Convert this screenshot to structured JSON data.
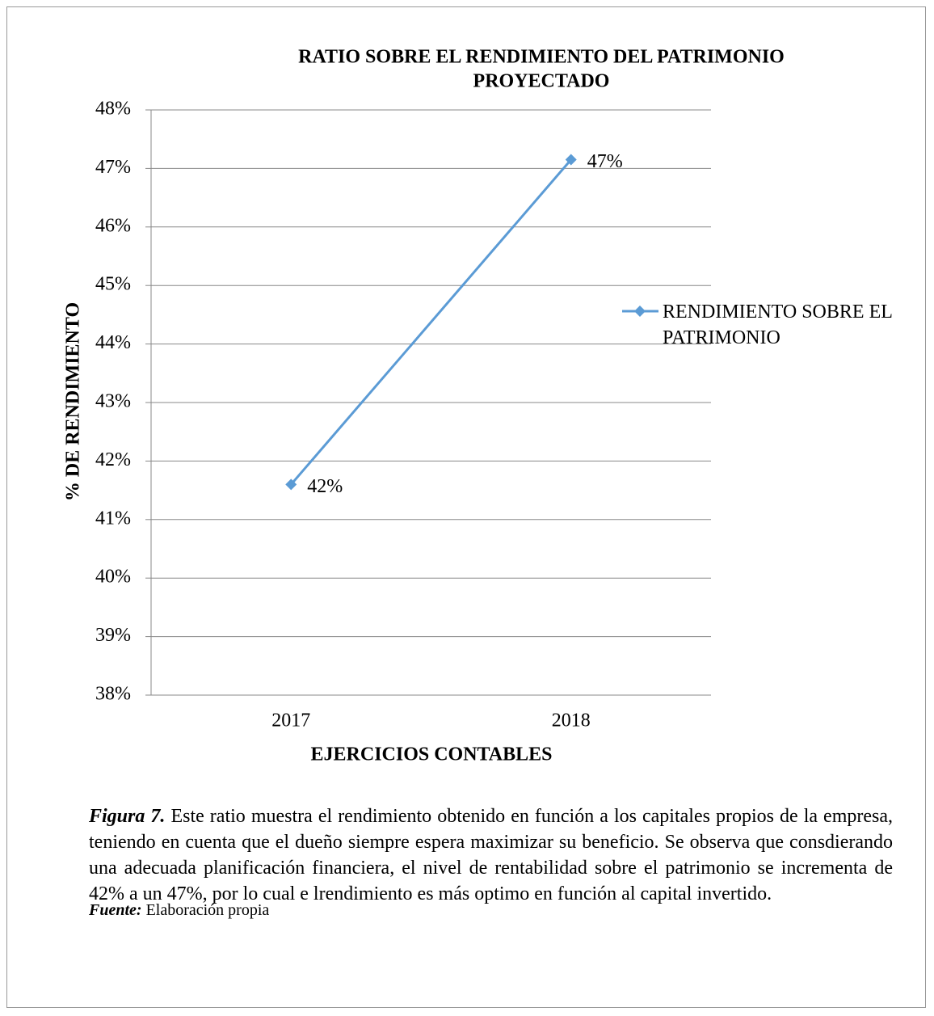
{
  "chart_data": {
    "type": "line",
    "title": [
      "RATIO SOBRE EL RENDIMIENTO DEL PATRIMONIO",
      "PROYECTADO"
    ],
    "x_label": "EJERCICIOS CONTABLES",
    "y_label": "% DE RENDIMIENTO",
    "categories": [
      "2017",
      "2018"
    ],
    "series": [
      {
        "name": "RENDIMIENTO SOBRE EL PATRIMONIO",
        "color": "#5b9bd5",
        "values": [
          41.6,
          47.15
        ],
        "value_labels": [
          "42%",
          "47%"
        ]
      }
    ],
    "ylim": [
      38,
      48
    ],
    "yticks": [
      {
        "value": 38,
        "label": "38%"
      },
      {
        "value": 39,
        "label": "39%"
      },
      {
        "value": 40,
        "label": "40%"
      },
      {
        "value": 41,
        "label": "41%"
      },
      {
        "value": 42,
        "label": "42%"
      },
      {
        "value": 43,
        "label": "43%"
      },
      {
        "value": 44,
        "label": "44%"
      },
      {
        "value": 45,
        "label": "45%"
      },
      {
        "value": 46,
        "label": "46%"
      },
      {
        "value": 47,
        "label": "47%"
      },
      {
        "value": 48,
        "label": "48%"
      }
    ],
    "grid": true,
    "legend": "right"
  },
  "caption": {
    "label": "Figura 7.",
    "text": "Este ratio muestra el rendimiento obtenido en función a los capitales propios de la empresa, teniendo en cuenta que el dueño siempre espera maximizar su beneficio. Se observa que consdierando una adecuada planificación financiera, el nivel de rentabilidad sobre el patrimonio se incrementa de 42% a un 47%, por lo cual e lrendimiento es más optimo en función al capital invertido."
  },
  "source": {
    "label": "Fuente:",
    "text": "Elaboración propia"
  }
}
